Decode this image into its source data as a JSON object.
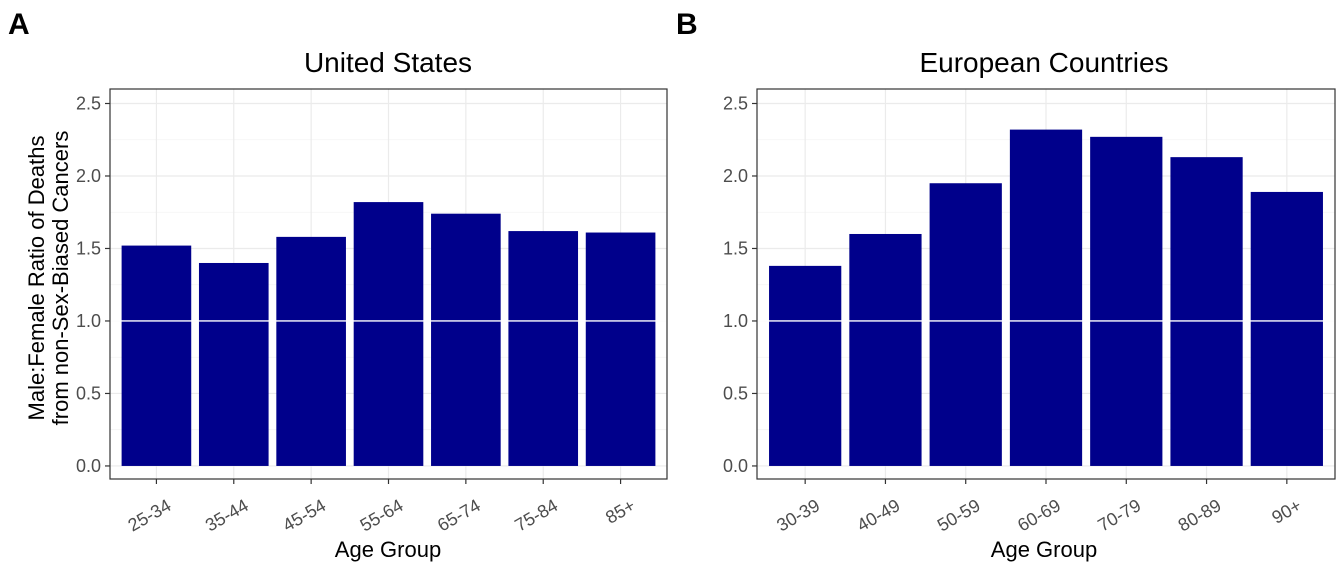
{
  "chart_data": [
    {
      "type": "bar",
      "panel_label": "A",
      "title": "United States",
      "xlabel": "Age Group",
      "ylabel_lines": [
        "Male:Female Ratio of Deaths",
        "from non-Sex-Biased Cancers"
      ],
      "categories": [
        "25-34",
        "35-44",
        "45-54",
        "55-64",
        "65-74",
        "75-84",
        "85+"
      ],
      "values": [
        1.52,
        1.4,
        1.58,
        1.82,
        1.74,
        1.62,
        1.61
      ],
      "ylim": [
        -0.09,
        2.6
      ],
      "yticks": [
        "0.0",
        "0.5",
        "1.0",
        "1.5",
        "2.0",
        "2.5"
      ],
      "reference_line": 1.0,
      "bar_color": "#00008b",
      "grid": true
    },
    {
      "type": "bar",
      "panel_label": "B",
      "title": "European Countries",
      "xlabel": "Age Group",
      "categories": [
        "30-39",
        "40-49",
        "50-59",
        "60-69",
        "70-79",
        "80-89",
        "90+"
      ],
      "values": [
        1.38,
        1.6,
        1.95,
        2.32,
        2.27,
        2.13,
        1.89
      ],
      "ylim": [
        -0.09,
        2.6
      ],
      "yticks": [
        "0.0",
        "0.5",
        "1.0",
        "1.5",
        "2.0",
        "2.5"
      ],
      "reference_line": 1.0,
      "bar_color": "#00008b",
      "grid": true
    }
  ]
}
